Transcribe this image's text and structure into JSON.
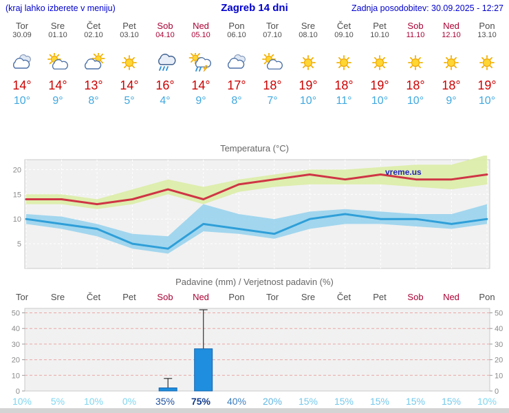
{
  "header": {
    "left_note": "(kraj lahko izberete v meniju)",
    "title": "Zagreb 14 dni",
    "updated": "Zadnja posodobitev: 30.09.2025 - 12:27"
  },
  "days": [
    {
      "name": "Tor",
      "date": "30.09",
      "red": false,
      "icon": "cloudy",
      "high": "14°",
      "low": "10°",
      "prob": "10%",
      "prob_color": "#7fd6f0",
      "prob_bold": false
    },
    {
      "name": "Sre",
      "date": "01.10",
      "red": false,
      "icon": "partly-cloudy",
      "high": "14°",
      "low": "9°",
      "prob": "5%",
      "prob_color": "#7fd6f0",
      "prob_bold": false
    },
    {
      "name": "Čet",
      "date": "02.10",
      "red": false,
      "icon": "mostly-cloudy",
      "high": "13°",
      "low": "8°",
      "prob": "10%",
      "prob_color": "#7fd6f0",
      "prob_bold": false
    },
    {
      "name": "Pet",
      "date": "03.10",
      "red": false,
      "icon": "sunny",
      "high": "14°",
      "low": "5°",
      "prob": "0%",
      "prob_color": "#7fd6f0",
      "prob_bold": false
    },
    {
      "name": "Sob",
      "date": "04.10",
      "red": true,
      "icon": "rain",
      "high": "16°",
      "low": "4°",
      "prob": "35%",
      "prob_color": "#1d4f9e",
      "prob_bold": false
    },
    {
      "name": "Ned",
      "date": "05.10",
      "red": true,
      "icon": "rain-sun",
      "high": "14°",
      "low": "9°",
      "prob": "75%",
      "prob_color": "#123c8c",
      "prob_bold": true
    },
    {
      "name": "Pon",
      "date": "06.10",
      "red": false,
      "icon": "cloudy",
      "high": "17°",
      "low": "8°",
      "prob": "40%",
      "prob_color": "#3c7fc0",
      "prob_bold": false
    },
    {
      "name": "Tor",
      "date": "07.10",
      "red": false,
      "icon": "partly-cloudy",
      "high": "18°",
      "low": "7°",
      "prob": "20%",
      "prob_color": "#62b8e4",
      "prob_bold": false
    },
    {
      "name": "Sre",
      "date": "08.10",
      "red": false,
      "icon": "sunny",
      "high": "19°",
      "low": "10°",
      "prob": "15%",
      "prob_color": "#74c9ec",
      "prob_bold": false
    },
    {
      "name": "Čet",
      "date": "09.10",
      "red": false,
      "icon": "sunny",
      "high": "18°",
      "low": "11°",
      "prob": "15%",
      "prob_color": "#74c9ec",
      "prob_bold": false
    },
    {
      "name": "Pet",
      "date": "10.10",
      "red": false,
      "icon": "sunny",
      "high": "19°",
      "low": "10°",
      "prob": "15%",
      "prob_color": "#74c9ec",
      "prob_bold": false
    },
    {
      "name": "Sob",
      "date": "11.10",
      "red": true,
      "icon": "sunny",
      "high": "18°",
      "low": "10°",
      "prob": "15%",
      "prob_color": "#74c9ec",
      "prob_bold": false
    },
    {
      "name": "Ned",
      "date": "12.10",
      "red": true,
      "icon": "sunny",
      "high": "18°",
      "low": "9°",
      "prob": "15%",
      "prob_color": "#74c9ec",
      "prob_bold": false
    },
    {
      "name": "Pon",
      "date": "13.10",
      "red": false,
      "icon": "sunny",
      "high": "19°",
      "low": "10°",
      "prob": "10%",
      "prob_color": "#7fd6f0",
      "prob_bold": false
    }
  ],
  "chart_data": [
    {
      "type": "line",
      "title": "Temperatura (°C)",
      "categories": [
        "Tor",
        "Sre",
        "Čet",
        "Pet",
        "Sob",
        "Ned",
        "Pon",
        "Tor",
        "Sre",
        "Čet",
        "Pet",
        "Sob",
        "Ned",
        "Pon"
      ],
      "series": [
        {
          "name": "max-line",
          "color": "#cf3545",
          "values": [
            14,
            14,
            13,
            14,
            16,
            14,
            17,
            18,
            19,
            18,
            19,
            18,
            18,
            19
          ]
        },
        {
          "name": "min-line",
          "color": "#2f9fd8",
          "values": [
            10,
            9,
            8,
            5,
            4,
            9,
            8,
            7,
            10,
            11,
            10,
            10,
            9,
            10
          ]
        }
      ],
      "bands": [
        {
          "name": "max-band",
          "color": "#dcedaa",
          "opacity": 0.95,
          "upper": [
            15,
            15,
            14,
            16,
            18,
            16.5,
            18,
            19,
            20,
            20,
            20.5,
            21,
            21,
            23
          ],
          "lower": [
            13,
            13,
            12,
            13,
            15,
            13,
            15.5,
            16.5,
            17,
            17,
            17,
            16.5,
            16,
            17
          ]
        },
        {
          "name": "min-band",
          "color": "#8fd0ee",
          "opacity": 0.8,
          "upper": [
            11,
            10.5,
            9,
            7,
            6.5,
            13,
            11,
            10,
            11.5,
            12,
            11.5,
            11,
            11,
            13
          ],
          "lower": [
            9,
            8,
            6.5,
            4,
            3,
            7.5,
            7,
            6,
            8,
            9,
            9,
            8.5,
            8,
            9
          ]
        }
      ],
      "ylim": [
        0,
        22
      ],
      "yticks": [
        5,
        10,
        15,
        20
      ],
      "legend": "off",
      "grid": "on",
      "watermark": "vreme.us"
    },
    {
      "type": "bar",
      "title": "Padavine (mm) / Verjetnost padavin (%)",
      "categories": [
        "Tor",
        "Sre",
        "Čet",
        "Pet",
        "Sob",
        "Ned",
        "Pon",
        "Tor",
        "Sre",
        "Čet",
        "Pet",
        "Sob",
        "Ned",
        "Pon"
      ],
      "values": [
        0,
        0,
        0,
        0,
        2,
        27,
        0,
        0,
        0,
        0,
        0,
        0,
        0,
        0
      ],
      "whisker_high": [
        null,
        null,
        null,
        null,
        8,
        52,
        null,
        null,
        null,
        null,
        null,
        null,
        null,
        null
      ],
      "whisker_low": [
        null,
        null,
        null,
        null,
        0,
        10,
        null,
        null,
        null,
        null,
        null,
        null,
        null,
        null
      ],
      "probabilities_pct": [
        10,
        5,
        10,
        0,
        35,
        75,
        40,
        20,
        15,
        15,
        15,
        15,
        15,
        10
      ],
      "ylim": [
        0,
        52
      ],
      "yticks": [
        0,
        10,
        20,
        30,
        40,
        50
      ],
      "bar_color": "#1f8ede",
      "legend": "off",
      "grid": "on"
    }
  ],
  "colors": {
    "header_blue": "#0000cc",
    "day_gray": "#4d4d4d",
    "day_red": "#aa0033",
    "temp_high_red": "#cc0000",
    "temp_low_blue": "#3fa8e0",
    "chart_title_gray": "#666666",
    "plot_bg": "#f1f1f1",
    "plot_border": "#c9c9c9",
    "temp_grid": "#ffffff",
    "precip_grid": "#eba5a5",
    "axis_label": "#8a8a8a",
    "watermark_blue": "#2222bb",
    "bar_stroke": "#1565b0",
    "whisker": "#333333",
    "bottom_bar": "#d4d4d4"
  }
}
